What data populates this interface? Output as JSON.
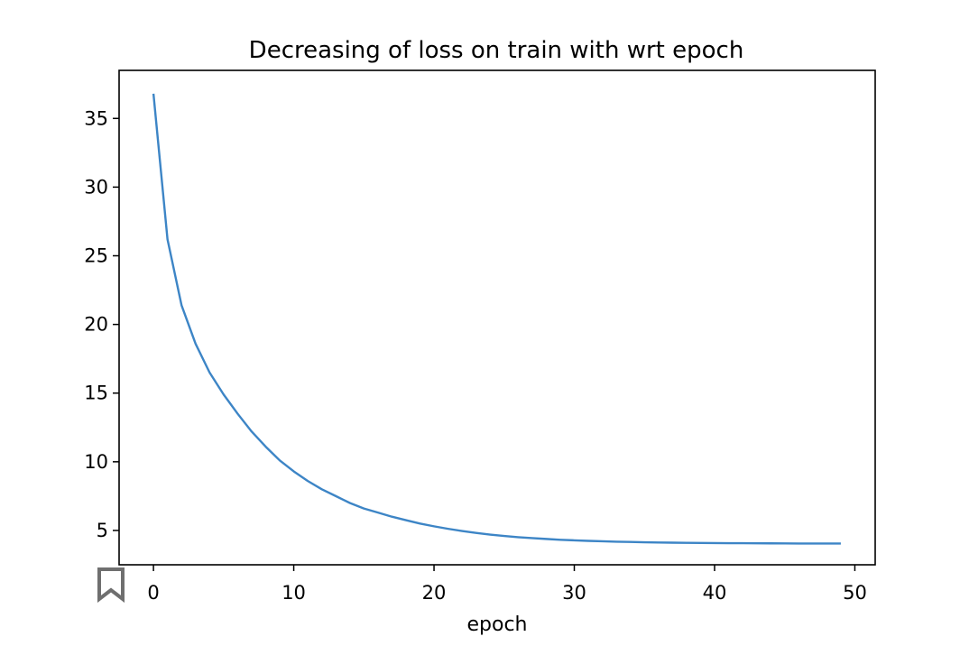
{
  "chart_data": {
    "type": "line",
    "title": "Decreasing of loss on train with wrt epoch",
    "xlabel": "epoch",
    "ylabel": "",
    "xlim": [
      -2.45,
      51.45
    ],
    "ylim": [
      2.5,
      38.5
    ],
    "xticks": [
      0,
      10,
      20,
      30,
      40,
      50
    ],
    "yticks": [
      5,
      10,
      15,
      20,
      25,
      30,
      35
    ],
    "grid": false,
    "series": [
      {
        "color": "#3d85c6",
        "x": [
          0,
          1,
          2,
          3,
          4,
          5,
          6,
          7,
          8,
          9,
          10,
          11,
          12,
          13,
          14,
          15,
          16,
          17,
          18,
          19,
          20,
          21,
          22,
          23,
          24,
          25,
          26,
          27,
          28,
          29,
          30,
          31,
          32,
          33,
          34,
          35,
          36,
          37,
          38,
          39,
          40,
          41,
          42,
          43,
          44,
          45,
          46,
          47,
          48,
          49
        ],
        "y": [
          36.8,
          26.2,
          21.4,
          18.6,
          16.5,
          14.9,
          13.5,
          12.2,
          11.1,
          10.1,
          9.3,
          8.6,
          8.0,
          7.5,
          7.0,
          6.6,
          6.3,
          6.0,
          5.75,
          5.5,
          5.3,
          5.12,
          4.96,
          4.82,
          4.7,
          4.6,
          4.51,
          4.44,
          4.38,
          4.32,
          4.28,
          4.24,
          4.21,
          4.18,
          4.16,
          4.14,
          4.12,
          4.11,
          4.1,
          4.09,
          4.08,
          4.075,
          4.07,
          4.065,
          4.06,
          4.055,
          4.05,
          4.05,
          4.05,
          4.05
        ]
      }
    ]
  },
  "icons": {
    "bookmark": "bookmark-outline-icon"
  }
}
